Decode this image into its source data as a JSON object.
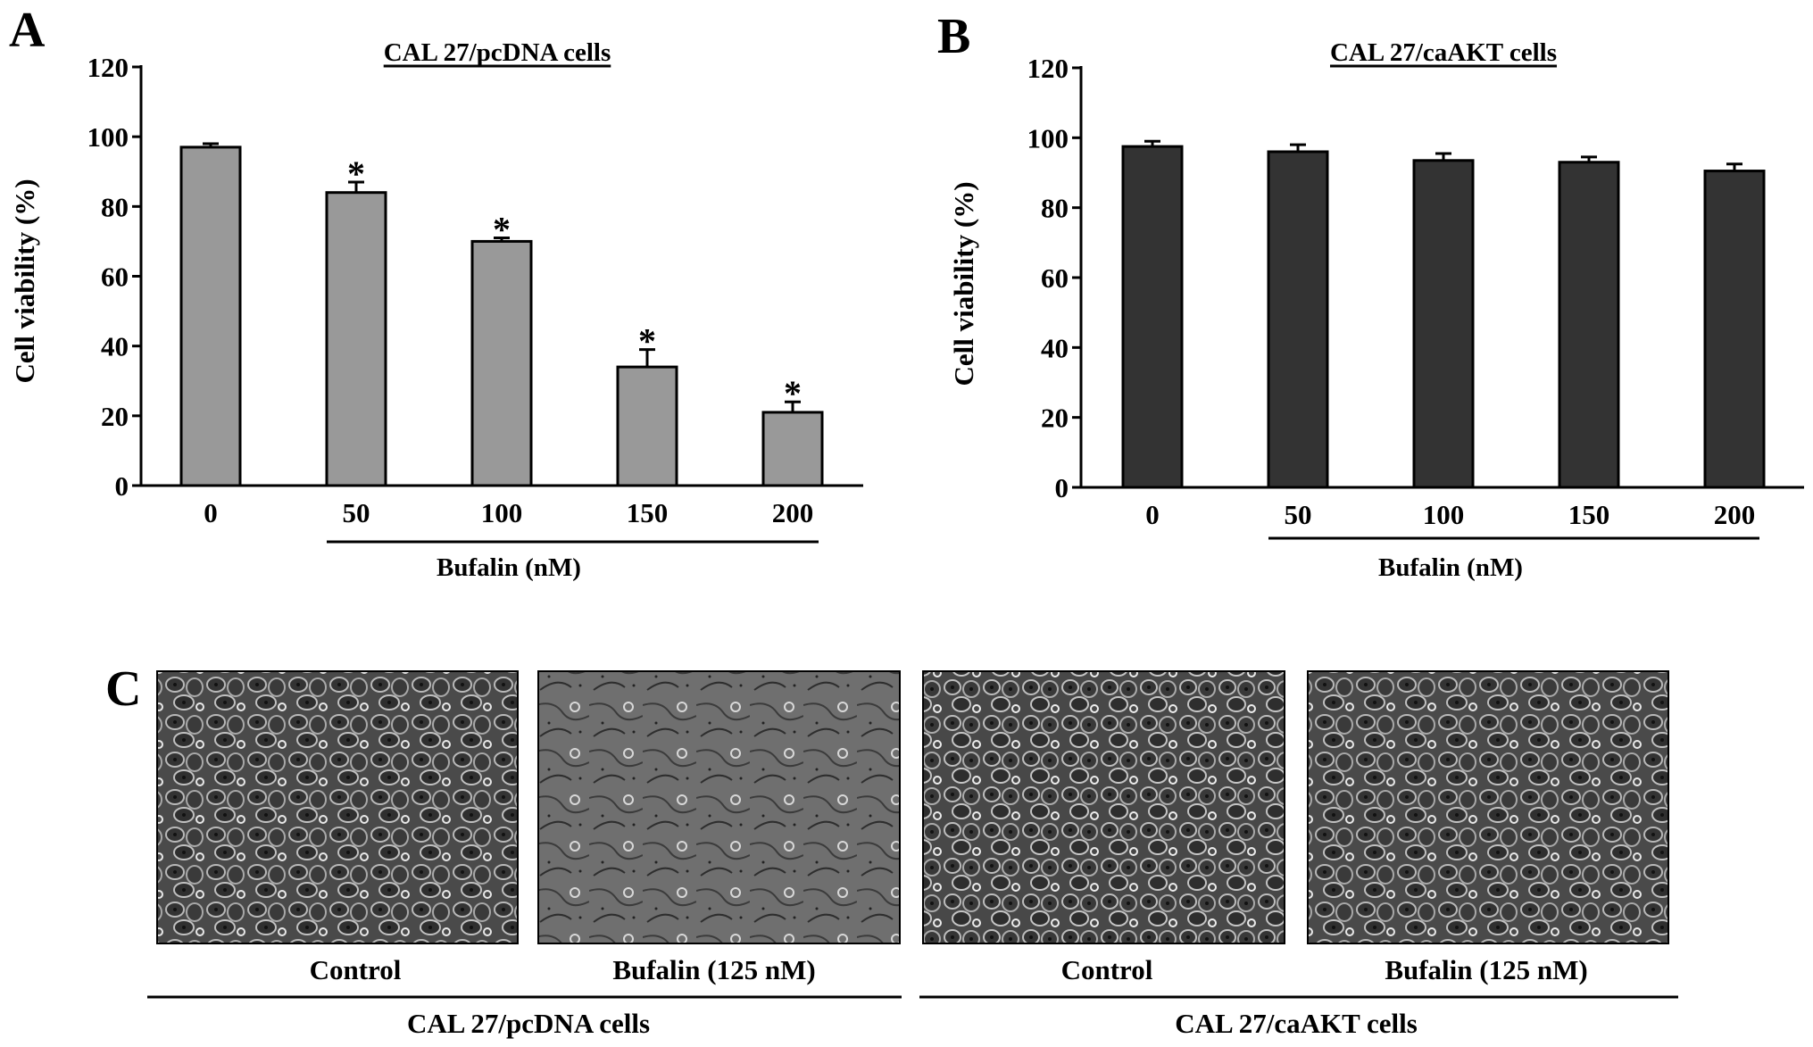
{
  "panels": {
    "a": "A",
    "b": "B",
    "c": "C"
  },
  "chart_data": [
    {
      "type": "bar",
      "title": "CAL 27/pcDNA cells",
      "ylabel": "Cell viability (%)",
      "xlabel": "Bufalin (nM)",
      "categories": [
        "0",
        "50",
        "100",
        "150",
        "200"
      ],
      "values": [
        97,
        84,
        70,
        34,
        21
      ],
      "errors": [
        1,
        3,
        1,
        5,
        3
      ],
      "significance": [
        "",
        "*",
        "*",
        "*",
        "*"
      ],
      "ylim": [
        0,
        120
      ],
      "yticks": [
        "0",
        "20",
        "40",
        "60",
        "80",
        "100",
        "120"
      ],
      "bar_color": "#999999",
      "grid": false
    },
    {
      "type": "bar",
      "title": "CAL 27/caAKT cells",
      "ylabel": "Cell viability (%)",
      "xlabel": "Bufalin (nM)",
      "categories": [
        "0",
        "50",
        "100",
        "150",
        "200"
      ],
      "values": [
        97.5,
        96,
        93.5,
        93,
        90.5
      ],
      "errors": [
        1.5,
        2,
        2,
        1.5,
        2
      ],
      "significance": [
        "",
        "",
        "",
        "",
        ""
      ],
      "ylim": [
        0,
        120
      ],
      "yticks": [
        "0",
        "20",
        "40",
        "60",
        "80",
        "100",
        "120"
      ],
      "bar_color": "#333333",
      "grid": false
    }
  ],
  "micrographs": [
    {
      "label": "Control"
    },
    {
      "label": "Bufalin (125 nM)"
    },
    {
      "label": "Control"
    },
    {
      "label": "Bufalin (125 nM)"
    }
  ],
  "groups": [
    "CAL 27/pcDNA cells",
    "CAL 27/caAKT cells"
  ]
}
